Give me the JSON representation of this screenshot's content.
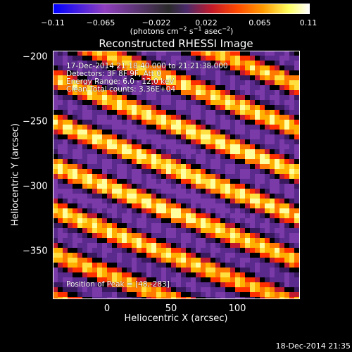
{
  "colorbar": {
    "ticks": [
      "−0.11",
      "−0.065",
      "−0.022",
      "0.022",
      "0.065",
      "0.11"
    ],
    "units_prefix": "(photons cm",
    "units_exp1": "−2",
    "units_mid1": " s",
    "units_exp2": "−1",
    "units_mid2": " asec",
    "units_exp3": "−2",
    "units_suffix": ")"
  },
  "plot": {
    "title": "Reconstructed RHESSI Image",
    "info_lines": [
      "17-Dec-2014 21:18:40.000 to 21:21:38.000",
      "Detectors: 3F 8F 9F, Att 0",
      "Energy Range: 6.0 - 12.0 keV",
      "Clean    Total counts: 3.36E+04"
    ],
    "peak_label": "Position of Peak = [48,-283]",
    "ylabel": "Heliocentric  Y  (arcsec)",
    "xlabel": "Heliocentric  X  (arcsec)",
    "y_ticks": [
      "−200",
      "−250",
      "−300",
      "−350"
    ],
    "x_ticks": [
      "0",
      "50",
      "100"
    ],
    "colormap": [
      "#3a1a5e",
      "#5a2a8c",
      "#7a3aa8",
      "#c01a30",
      "#ff3000",
      "#ff7a00",
      "#ffb000",
      "#ffe040",
      "#ffffa0"
    ]
  },
  "footer": {
    "timestamp": "18-Dec-2014 21:35"
  }
}
